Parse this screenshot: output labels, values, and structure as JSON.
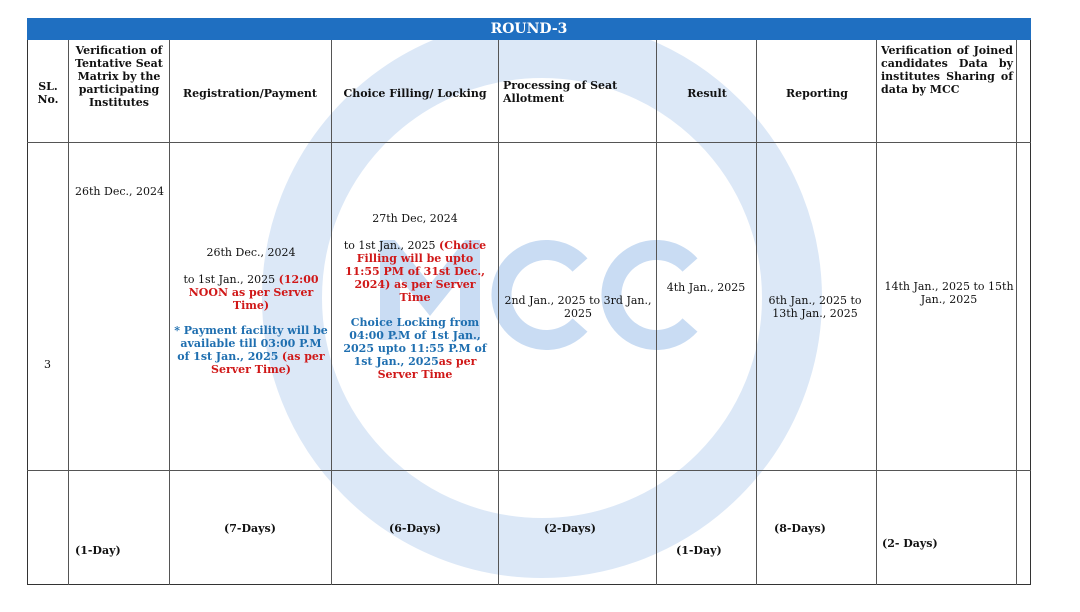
{
  "title": "ROUND-3",
  "watermark": "MCC",
  "headers": [
    "SL. No.",
    "Verification of Tentative Seat Matrix by the participating Institutes",
    "Registration/Payment",
    "Choice Filling/ Locking",
    "Processing of Seat Allotment",
    "Result",
    "Reporting",
    "Verification of Joined candidates Data by institutes Sharing of data by MCC"
  ],
  "row": {
    "sl": "3",
    "verification": "26th Dec., 2024",
    "registration": {
      "start": "26th Dec., 2024",
      "end": "to 1st Jan., 2025",
      "end_note": "(12:00 NOON as per Server Time)",
      "payment_note": "* Payment facility will be available till 03:00 P.M of 1st Jan., 2025",
      "payment_suffix": "(as per Server Time)"
    },
    "choice": {
      "start": "27th Dec, 2024",
      "end": "to 1st Jan., 2025",
      "end_note": "(Choice Filling will be upto 11:55 PM of 31st Dec., 2024) as per Server Time",
      "locking": "Choice Locking from 04:00 P.M of 1st Jan., 2025 upto 11:55 P.M of 1st Jan., 2025",
      "locking_suffix": "as per Server Time"
    },
    "processing": "2nd Jan., 2025 to 3rd Jan., 2025",
    "result": "4th Jan., 2025",
    "reporting": "6th Jan., 2025 to 13th Jan., 2025",
    "joined": "14th Jan., 2025 to 15th Jan., 2025"
  },
  "durations": [
    "(1-Day)",
    "(7-Days)",
    "(6-Days)",
    "(2-Days)",
    "(1-Day)",
    "(8-Days)",
    "(2- Days)"
  ]
}
